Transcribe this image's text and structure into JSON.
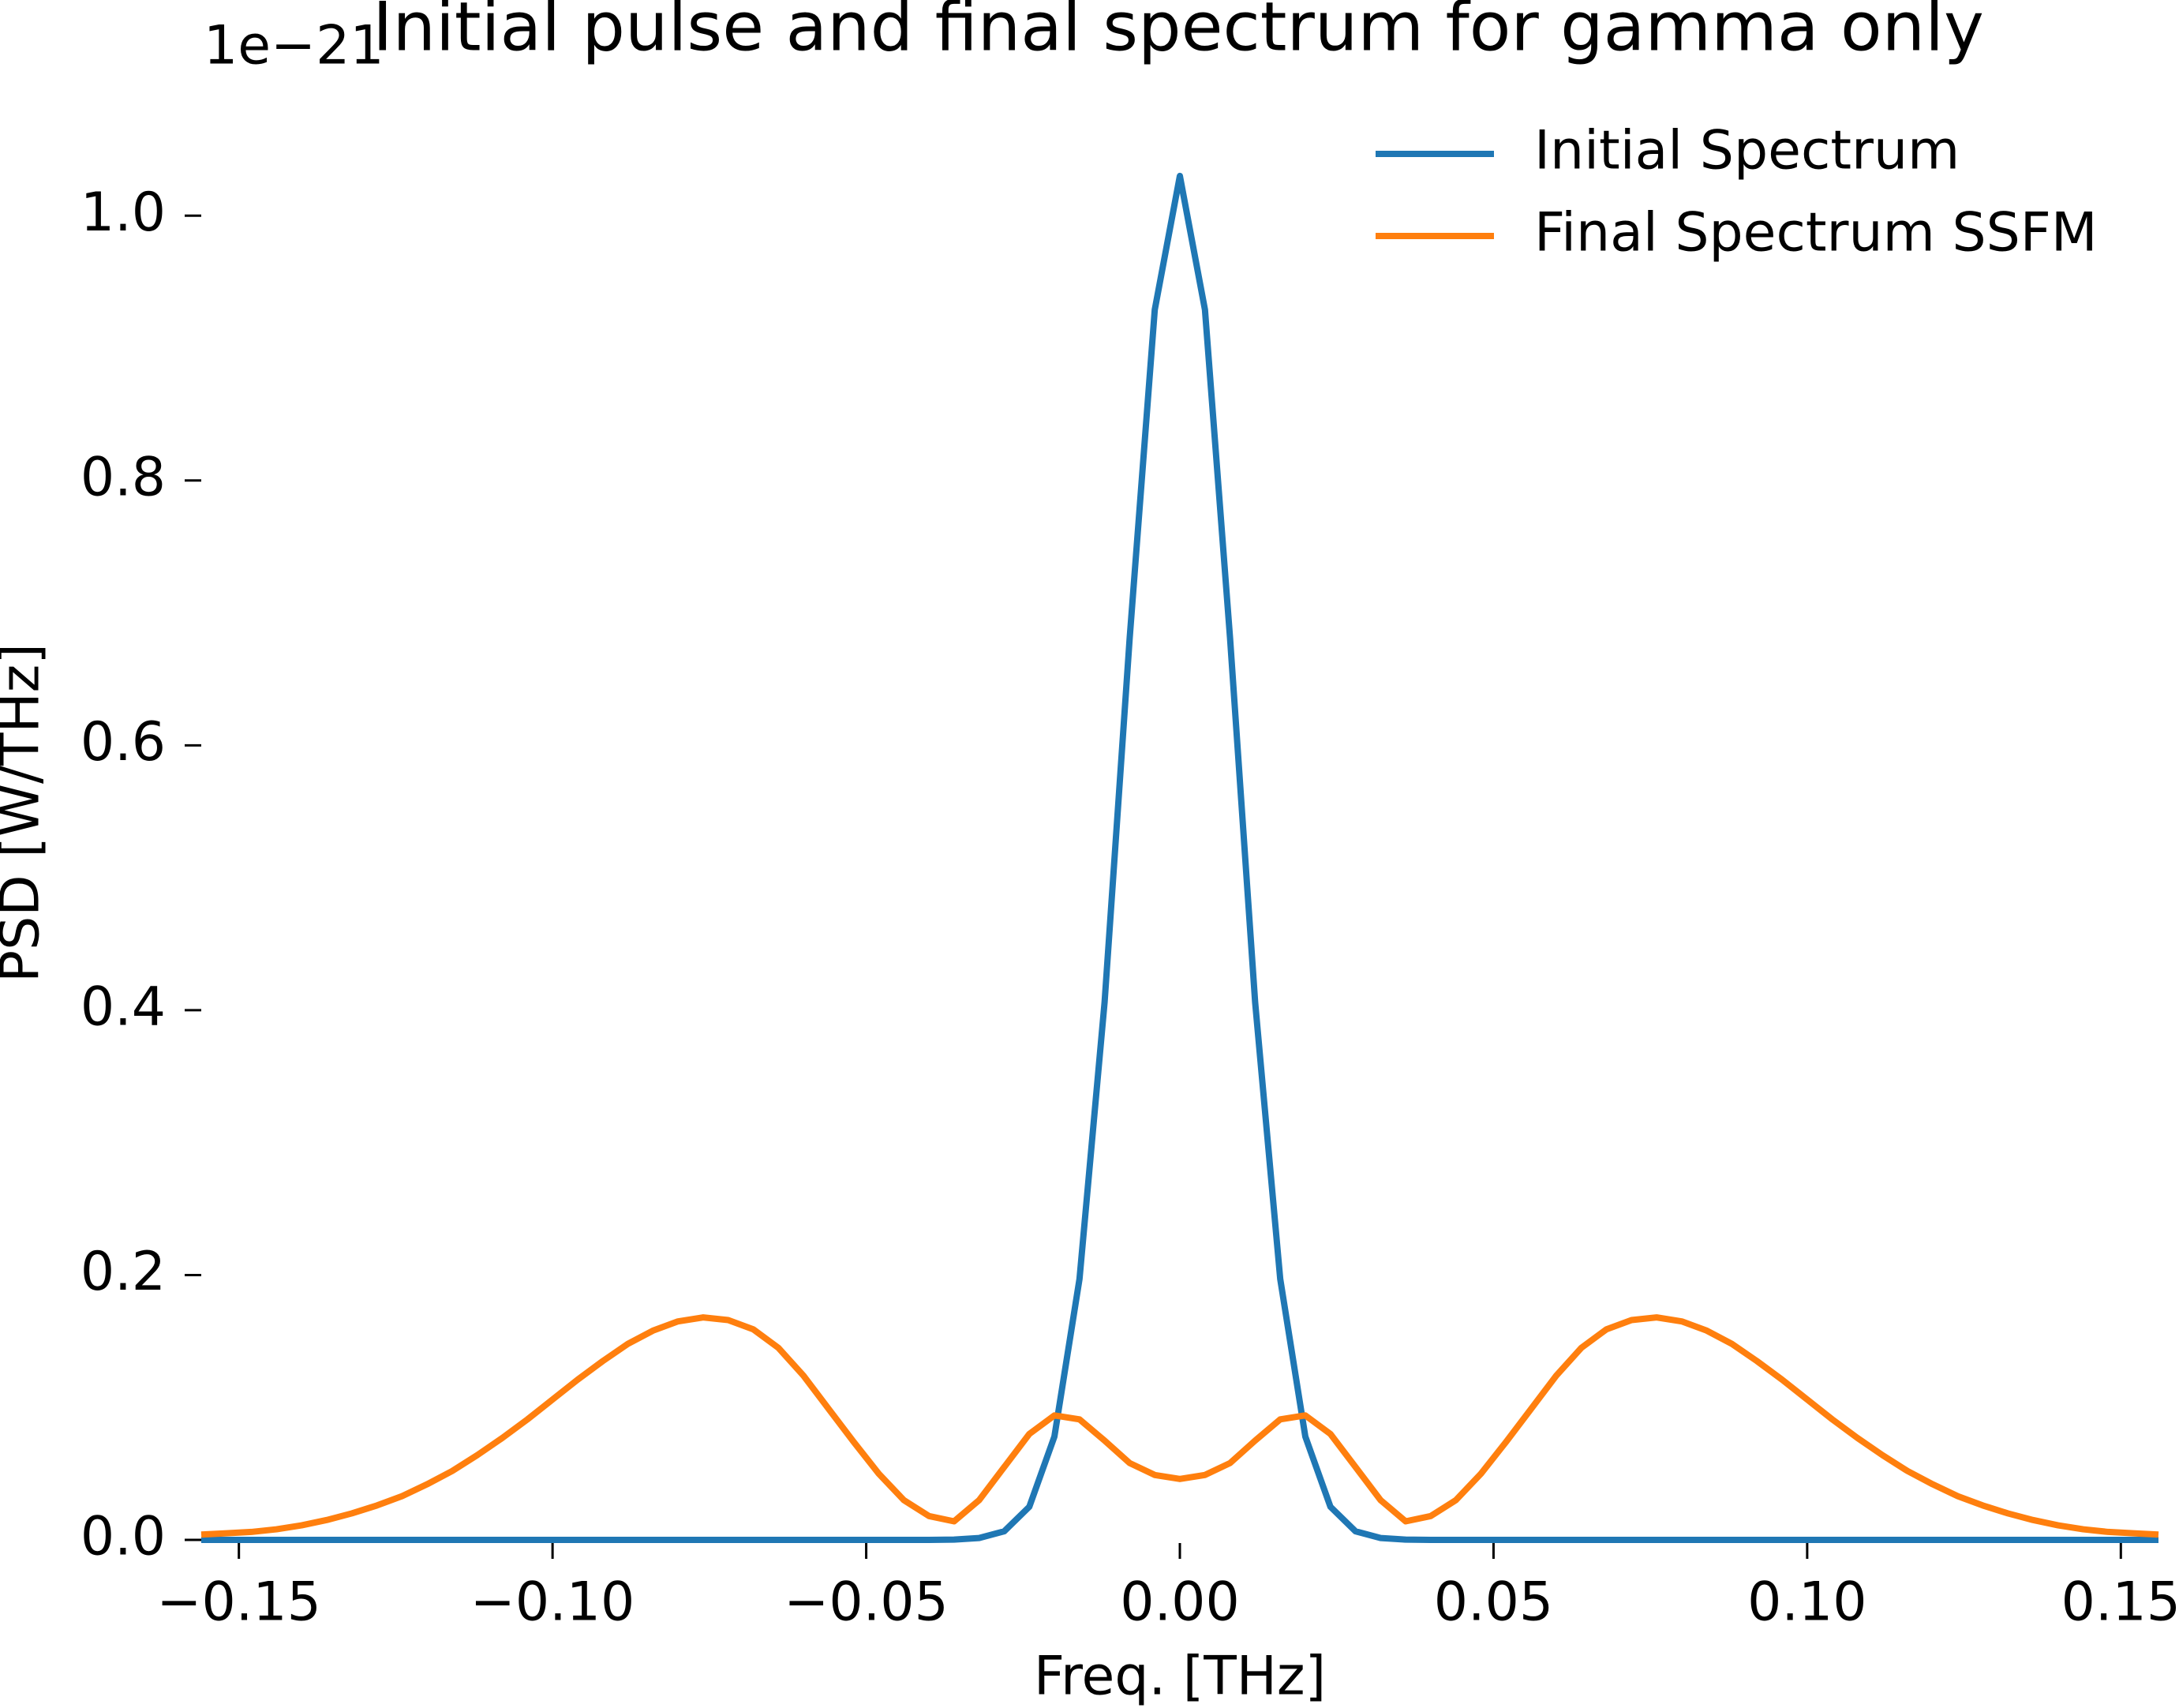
{
  "chart_data": {
    "type": "line",
    "title": "Initial pulse and final spectrum for gamma only",
    "y_offset_label": "1e−21",
    "xlabel": "Freq. [THz]",
    "ylabel": "PSD [W/THz]",
    "legend": "upper right",
    "xlim": [
      -0.156,
      0.156
    ],
    "ylim": [
      0,
      1.08
    ],
    "xticks": [
      {
        "value": -0.15,
        "label": "−0.15"
      },
      {
        "value": -0.1,
        "label": "−0.10"
      },
      {
        "value": -0.05,
        "label": "−0.05"
      },
      {
        "value": 0,
        "label": "0.00"
      },
      0.05,
      {
        "value": 0.1,
        "label": "0.10"
      },
      0.15
    ],
    "yticks": [
      {
        "value": 0,
        "label": "0.0"
      },
      0.2,
      0.4,
      0.6,
      0.8,
      {
        "value": 1,
        "label": "1.0"
      }
    ],
    "x": [
      -0.156,
      -0.152,
      -0.148,
      -0.144,
      -0.14,
      -0.136,
      -0.132,
      -0.128,
      -0.124,
      -0.12,
      -0.116,
      -0.112,
      -0.108,
      -0.104,
      -0.1,
      -0.096,
      -0.092,
      -0.088,
      -0.084,
      -0.08,
      -0.076,
      -0.072,
      -0.068,
      -0.064,
      -0.06,
      -0.056,
      -0.052,
      -0.048,
      -0.044,
      -0.04,
      -0.036,
      -0.032,
      -0.028,
      -0.024,
      -0.02,
      -0.016,
      -0.012,
      -0.008,
      -0.004,
      0,
      0.004,
      0.008,
      0.012,
      0.016,
      0.02,
      0.024,
      0.028,
      0.032,
      0.036,
      0.04,
      0.044,
      0.048,
      0.052,
      0.056,
      0.06,
      0.064,
      0.068,
      0.072,
      0.076,
      0.08,
      0.084,
      0.088,
      0.092,
      0.096,
      0.1,
      0.104,
      0.108,
      0.112,
      0.116,
      0.12,
      0.124,
      0.128,
      0.132,
      0.136,
      0.14,
      0.144,
      0.148,
      0.152,
      0.156
    ],
    "series": [
      {
        "name": "Initial Spectrum",
        "color": "#1f77b4",
        "values": [
          0,
          0,
          0,
          0,
          0,
          0,
          0,
          0,
          0,
          0,
          0,
          0,
          0,
          0,
          0,
          0,
          0,
          0,
          0,
          0,
          0,
          0,
          0,
          0,
          0,
          0,
          0,
          0,
          0,
          0,
          0.0002,
          0.0014,
          0.0065,
          0.025,
          0.078,
          0.197,
          0.406,
          0.681,
          0.929,
          1.03,
          0.929,
          0.681,
          0.406,
          0.197,
          0.078,
          0.025,
          0.0065,
          0.0014,
          0.0002,
          0,
          0,
          0,
          0,
          0,
          0,
          0,
          0,
          0,
          0,
          0,
          0,
          0,
          0,
          0,
          0,
          0,
          0,
          0,
          0,
          0,
          0,
          0,
          0,
          0,
          0,
          0,
          0,
          0,
          0
        ]
      },
      {
        "name": "Final Spectrum SSFM",
        "color": "#ff7f0e",
        "values": [
          0.004,
          0.005,
          0.006,
          0.008,
          0.011,
          0.015,
          0.02,
          0.026,
          0.033,
          0.042,
          0.052,
          0.064,
          0.077,
          0.091,
          0.106,
          0.121,
          0.135,
          0.148,
          0.158,
          0.165,
          0.168,
          0.166,
          0.159,
          0.145,
          0.124,
          0.099,
          0.074,
          0.05,
          0.03,
          0.018,
          0.014,
          0.03,
          0.055,
          0.08,
          0.094,
          0.091,
          0.075,
          0.058,
          0.049,
          0.046,
          0.049,
          0.058,
          0.075,
          0.091,
          0.094,
          0.08,
          0.055,
          0.03,
          0.014,
          0.018,
          0.03,
          0.05,
          0.074,
          0.099,
          0.124,
          0.145,
          0.159,
          0.166,
          0.168,
          0.165,
          0.158,
          0.148,
          0.135,
          0.121,
          0.106,
          0.091,
          0.077,
          0.064,
          0.052,
          0.042,
          0.033,
          0.026,
          0.02,
          0.015,
          0.011,
          0.008,
          0.006,
          0.005,
          0.004
        ]
      }
    ]
  }
}
